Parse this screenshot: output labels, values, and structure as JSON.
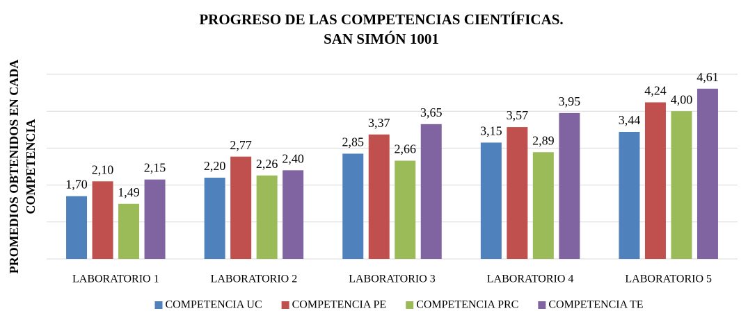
{
  "chart_data": {
    "type": "bar",
    "title": [
      "PROGRESO DE LAS COMPETENCIAS CIENTÍFICAS.",
      "SAN SIMÓN 1001"
    ],
    "ylabel": [
      "PROMEDIOS OBTENIDOS EN CADA",
      "COMPETENCIA"
    ],
    "categories": [
      "LABORATORIO 1",
      "LABORATORIO 2",
      "LABORATORIO 3",
      "LABORATORIO 4",
      "LABORATORIO 5"
    ],
    "series": [
      {
        "name": "COMPETENCIA UC",
        "color": "#4f81bd",
        "values": [
          1.7,
          2.2,
          2.85,
          3.15,
          3.44
        ],
        "value_labels": [
          "1,70",
          "2,20",
          "2,85",
          "3,15",
          "3,44"
        ]
      },
      {
        "name": "COMPETENCIA PE",
        "color": "#c0504d",
        "values": [
          2.1,
          2.77,
          3.37,
          3.57,
          4.24
        ],
        "value_labels": [
          "2,10",
          "2,77",
          "3,37",
          "3,57",
          "4,24"
        ]
      },
      {
        "name": "COMPETENCIA PRC",
        "color": "#9bbb59",
        "values": [
          1.49,
          2.26,
          2.66,
          2.89,
          4.0
        ],
        "value_labels": [
          "1,49",
          "2,26",
          "2,66",
          "2,89",
          "4,00"
        ]
      },
      {
        "name": "COMPETENCIA TE",
        "color": "#8064a2",
        "values": [
          2.15,
          2.4,
          3.65,
          3.95,
          4.61
        ],
        "value_labels": [
          "2,15",
          "2,40",
          "3,65",
          "3,95",
          "4,61"
        ]
      }
    ],
    "ylim": [
      0,
      5
    ],
    "yticks": [
      0,
      1,
      2,
      3,
      4,
      5
    ],
    "grid": true,
    "legend": "bottom"
  }
}
